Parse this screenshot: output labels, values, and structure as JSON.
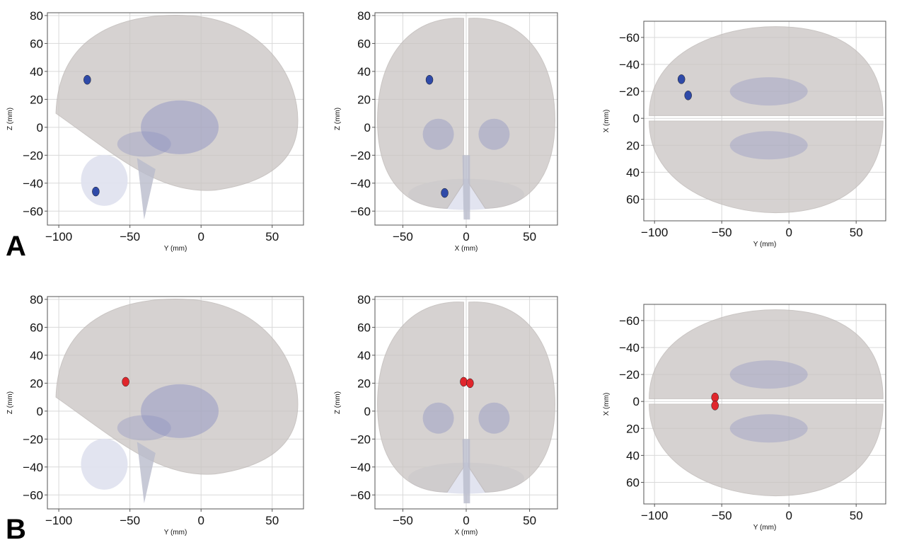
{
  "panel_labels": [
    "A",
    "B"
  ],
  "colors": {
    "group_A": "#2f4aa8",
    "group_B": "#e0262c",
    "brain_fill": "#c9c4c2",
    "subcortical": "#8a8fc0",
    "cerebellum": "#dfe1ee",
    "grid": "#d9d9d9"
  },
  "chart_data": [
    {
      "type": "scatter",
      "row": "A",
      "view": "sagittal",
      "xlabel": "Y (mm)",
      "ylabel": "Z (mm)",
      "xlim": [
        -108,
        72
      ],
      "ylim": [
        -70,
        82
      ],
      "y_reversed": false,
      "xticks": [
        -100,
        -50,
        0,
        50
      ],
      "yticks": [
        80,
        60,
        40,
        20,
        0,
        -20,
        -40,
        -60
      ],
      "xtick_labels": [
        "−100",
        "−50",
        "0",
        "50"
      ],
      "ytick_labels": [
        "80",
        "60",
        "40",
        "20",
        "0",
        "−20",
        "−40",
        "−60"
      ],
      "series": [
        {
          "color": "#2f4aa8",
          "points": [
            [
              -80,
              34
            ],
            [
              -74,
              -46
            ]
          ]
        }
      ]
    },
    {
      "type": "scatter",
      "row": "A",
      "view": "coronal",
      "xlabel": "X (mm)",
      "ylabel": "Z (mm)",
      "xlim": [
        -72,
        72
      ],
      "ylim": [
        -70,
        82
      ],
      "y_reversed": false,
      "xticks": [
        -50,
        0,
        50
      ],
      "yticks": [
        80,
        60,
        40,
        20,
        0,
        -20,
        -40,
        -60
      ],
      "xtick_labels": [
        "−50",
        "0",
        "50"
      ],
      "ytick_labels": [
        "80",
        "60",
        "40",
        "20",
        "0",
        "−20",
        "−40",
        "−60"
      ],
      "series": [
        {
          "color": "#2f4aa8",
          "points": [
            [
              -29,
              34
            ],
            [
              -17,
              -47
            ]
          ]
        }
      ]
    },
    {
      "type": "scatter",
      "row": "A",
      "view": "axial",
      "xlabel": "Y (mm)",
      "ylabel": "X (mm)",
      "xlim": [
        -108,
        72
      ],
      "ylim": [
        -72,
        76
      ],
      "y_reversed": true,
      "xticks": [
        -100,
        -50,
        0,
        50
      ],
      "yticks": [
        -60,
        -40,
        -20,
        0,
        20,
        40,
        60
      ],
      "xtick_labels": [
        "−100",
        "−50",
        "0",
        "50"
      ],
      "ytick_labels": [
        "−60",
        "−40",
        "−20",
        "0",
        "20",
        "40",
        "60"
      ],
      "series": [
        {
          "color": "#2f4aa8",
          "points": [
            [
              -80,
              -29
            ],
            [
              -75,
              -17
            ]
          ]
        }
      ]
    },
    {
      "type": "scatter",
      "row": "B",
      "view": "sagittal",
      "xlabel": "Y (mm)",
      "ylabel": "Z (mm)",
      "xlim": [
        -108,
        72
      ],
      "ylim": [
        -70,
        82
      ],
      "y_reversed": false,
      "xticks": [
        -100,
        -50,
        0,
        50
      ],
      "yticks": [
        80,
        60,
        40,
        20,
        0,
        -20,
        -40,
        -60
      ],
      "xtick_labels": [
        "−100",
        "−50",
        "0",
        "50"
      ],
      "ytick_labels": [
        "80",
        "60",
        "40",
        "20",
        "0",
        "−20",
        "−40",
        "−60"
      ],
      "series": [
        {
          "color": "#e0262c",
          "points": [
            [
              -53,
              21
            ]
          ]
        }
      ]
    },
    {
      "type": "scatter",
      "row": "B",
      "view": "coronal",
      "xlabel": "X (mm)",
      "ylabel": "Z (mm)",
      "xlim": [
        -72,
        72
      ],
      "ylim": [
        -70,
        82
      ],
      "y_reversed": false,
      "xticks": [
        -50,
        0,
        50
      ],
      "yticks": [
        80,
        60,
        40,
        20,
        0,
        -20,
        -40,
        -60
      ],
      "xtick_labels": [
        "−50",
        "0",
        "50"
      ],
      "ytick_labels": [
        "80",
        "60",
        "40",
        "20",
        "0",
        "−20",
        "−40",
        "−60"
      ],
      "series": [
        {
          "color": "#e0262c",
          "points": [
            [
              -2,
              21
            ],
            [
              3,
              20
            ]
          ]
        }
      ]
    },
    {
      "type": "scatter",
      "row": "B",
      "view": "axial",
      "xlabel": "Y (mm)",
      "ylabel": "X (mm)",
      "xlim": [
        -108,
        72
      ],
      "ylim": [
        -72,
        76
      ],
      "y_reversed": true,
      "xticks": [
        -100,
        -50,
        0,
        50
      ],
      "yticks": [
        -60,
        -40,
        -20,
        0,
        20,
        40,
        60
      ],
      "xtick_labels": [
        "−100",
        "−50",
        "0",
        "50"
      ],
      "ytick_labels": [
        "−60",
        "−40",
        "−20",
        "0",
        "20",
        "40",
        "60"
      ],
      "series": [
        {
          "color": "#e0262c",
          "points": [
            [
              -55,
              -3
            ],
            [
              -55,
              3
            ]
          ]
        }
      ]
    }
  ]
}
